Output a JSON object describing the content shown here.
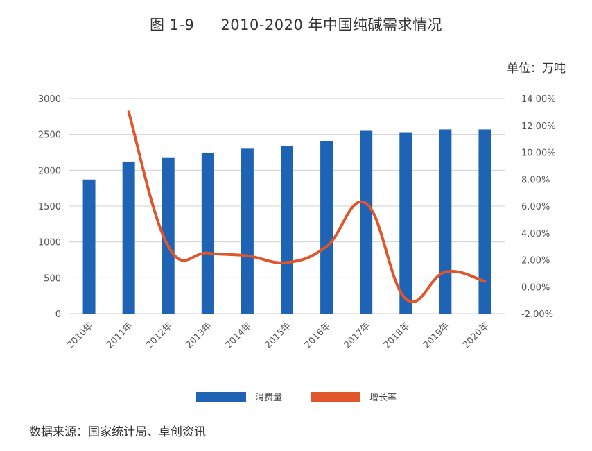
{
  "header": {
    "figure_no": "图 1-9",
    "title": "2010-2020 年中国纯碱需求情况",
    "unit": "单位：万吨"
  },
  "source": "数据来源：国家统计局、卓创资讯",
  "colors": {
    "bar": "#1f63b5",
    "line": "#e0552a",
    "grid": "#d0d0d0"
  },
  "chart_data": {
    "type": "bar",
    "categories": [
      "2010年",
      "2011年",
      "2012年",
      "2013年",
      "2014年",
      "2015年",
      "2016年",
      "2017年",
      "2018年",
      "2019年",
      "2020年"
    ],
    "series": [
      {
        "name": "消费量",
        "type": "bar",
        "axis": "left",
        "values": [
          1870,
          2120,
          2180,
          2240,
          2300,
          2340,
          2410,
          2550,
          2530,
          2570,
          2570
        ]
      },
      {
        "name": "增长率",
        "type": "line",
        "axis": "right",
        "values": [
          null,
          13.0,
          3.0,
          2.5,
          2.3,
          1.8,
          3.0,
          6.2,
          -0.9,
          1.1,
          0.4
        ]
      }
    ],
    "y_left": {
      "min": 0,
      "max": 3000,
      "ticks": [
        "0",
        "500",
        "1000",
        "1500",
        "2000",
        "2500",
        "3000"
      ]
    },
    "y_right": {
      "min": -2,
      "max": 14,
      "ticks": [
        "-2.00%",
        "0.00%",
        "2.00%",
        "4.00%",
        "6.00%",
        "8.00%",
        "10.00%",
        "12.00%",
        "14.00%"
      ]
    },
    "legend": [
      "消费量",
      "增长率"
    ]
  }
}
